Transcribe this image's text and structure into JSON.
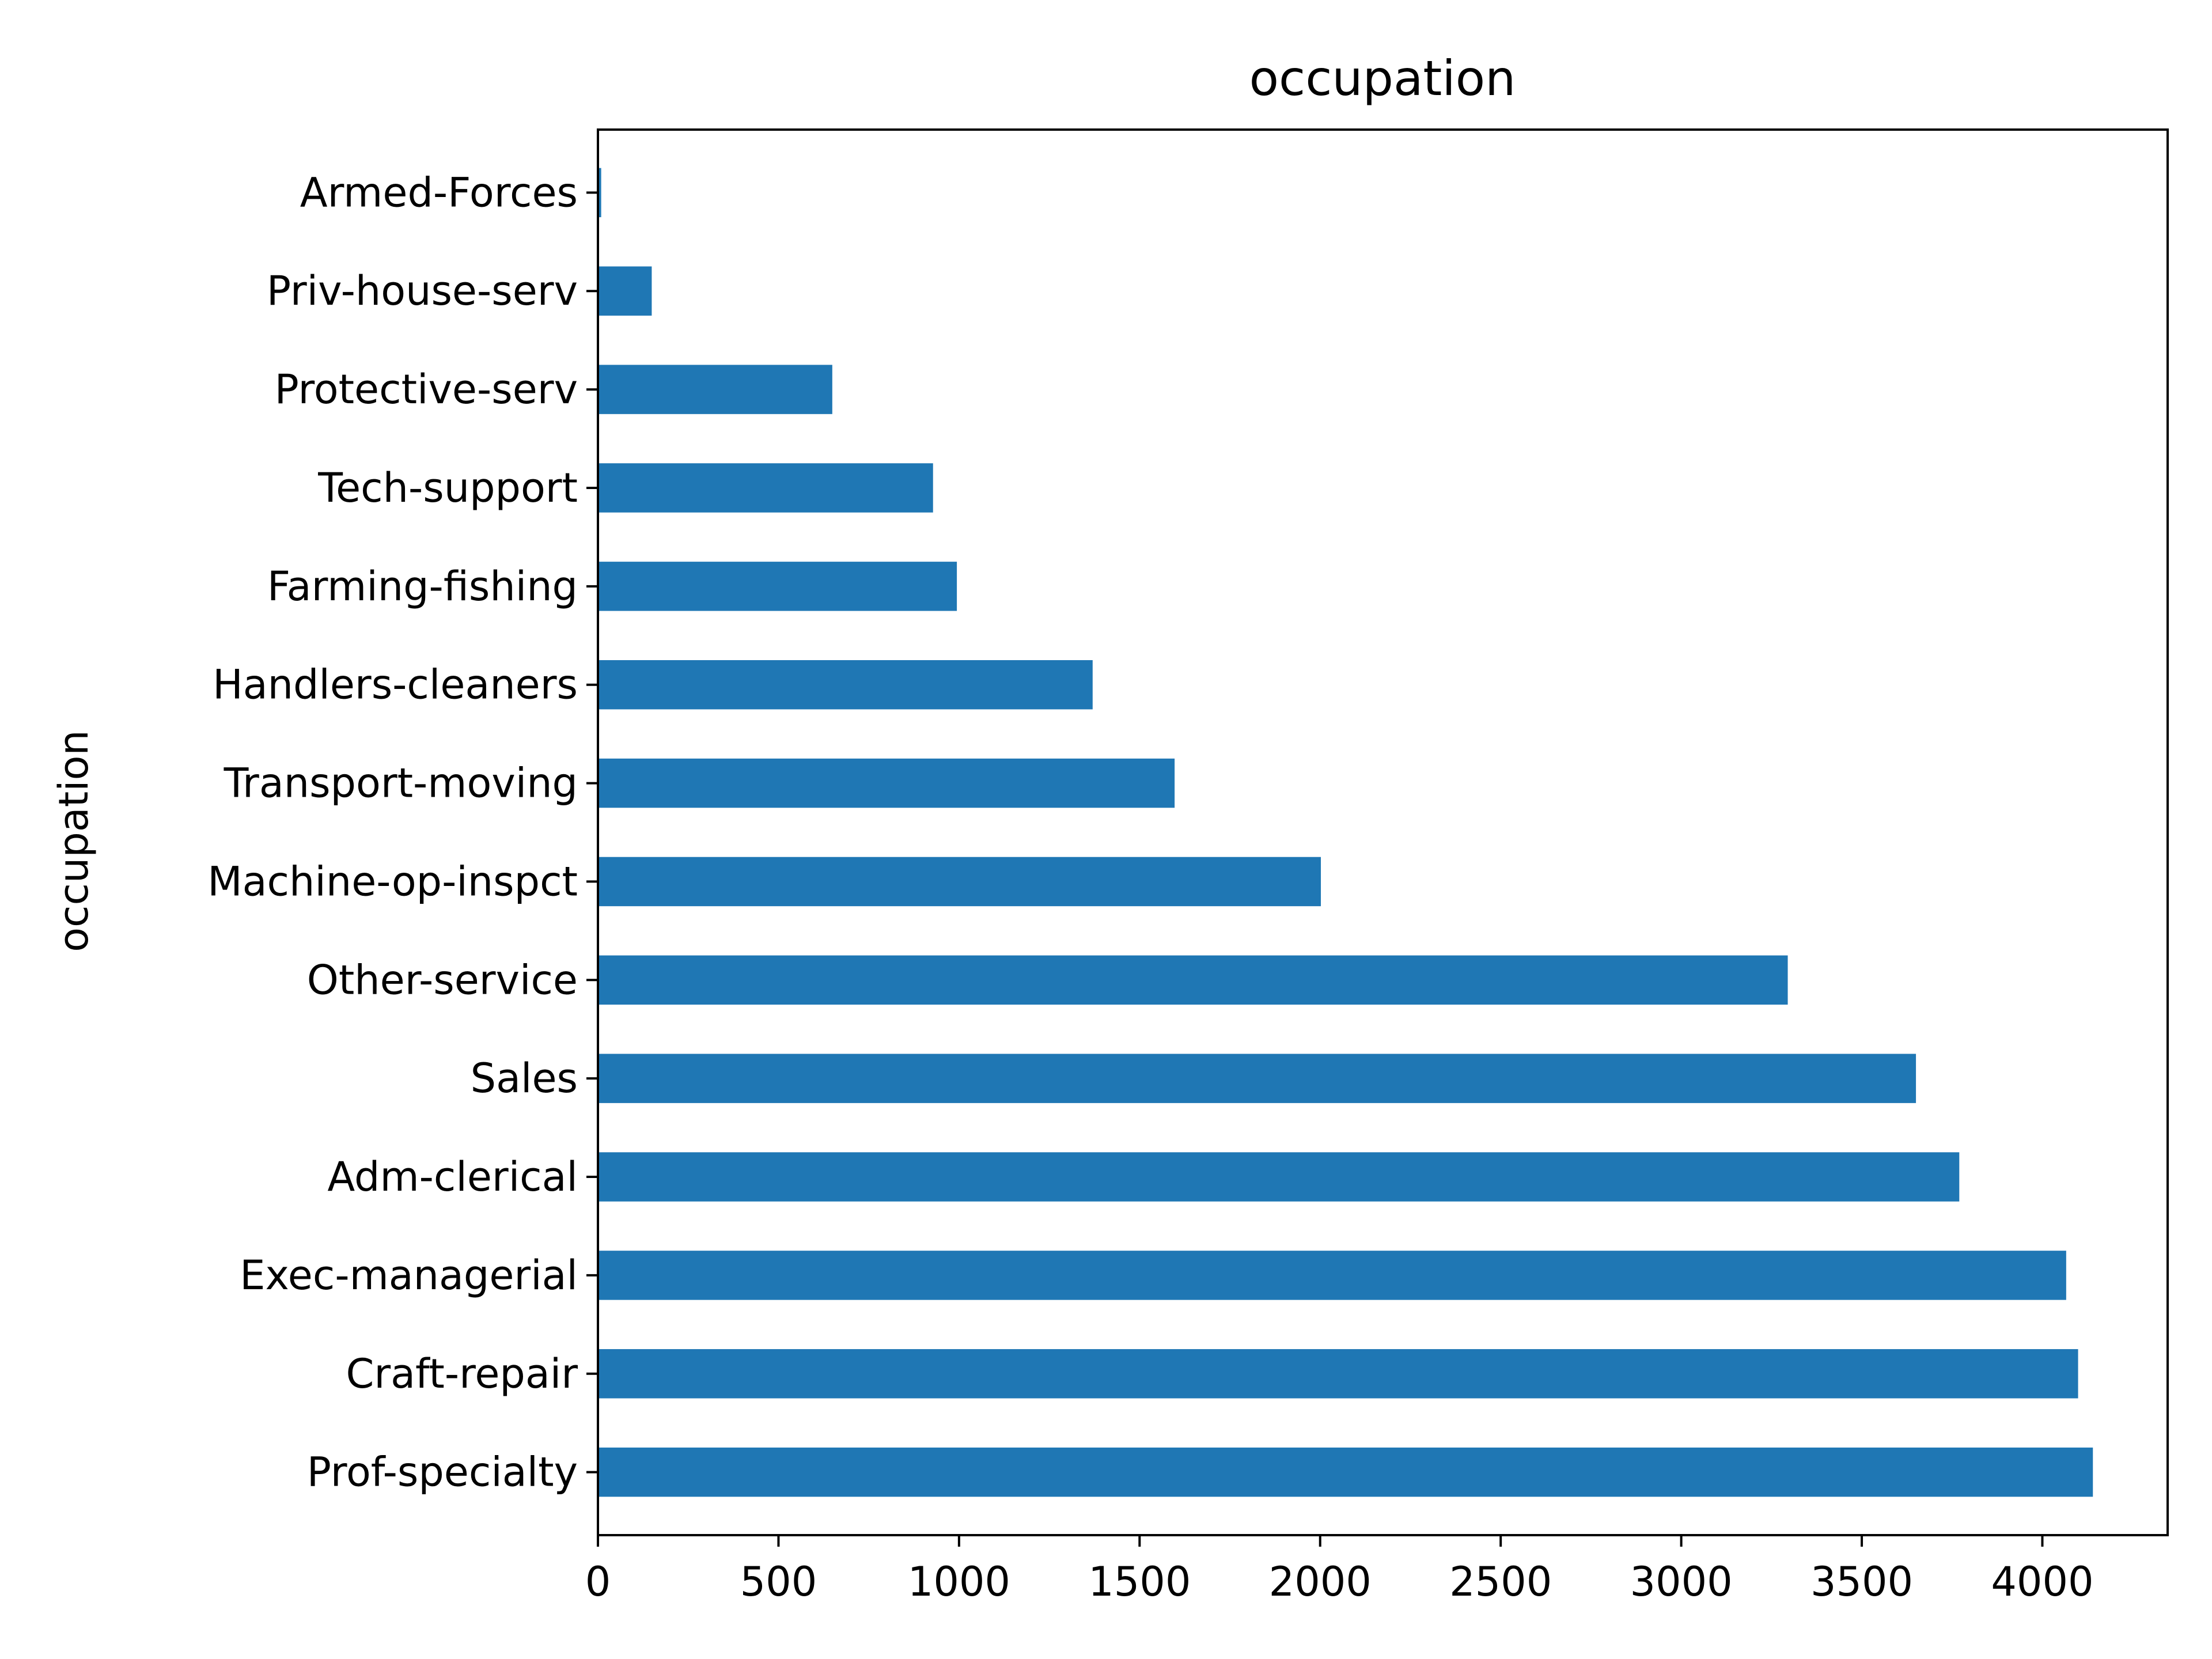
{
  "chart_data": {
    "type": "bar",
    "orientation": "horizontal",
    "title": "occupation",
    "xlabel": "",
    "ylabel": "occupation",
    "categories": [
      "Prof-specialty",
      "Craft-repair",
      "Exec-managerial",
      "Adm-clerical",
      "Sales",
      "Other-service",
      "Machine-op-inspct",
      "Transport-moving",
      "Handlers-cleaners",
      "Farming-fishing",
      "Tech-support",
      "Protective-serv",
      "Priv-house-serv",
      "Armed-Forces"
    ],
    "values": [
      4140,
      4099,
      4066,
      3770,
      3650,
      3295,
      2002,
      1597,
      1370,
      994,
      928,
      649,
      149,
      9
    ],
    "xlim": [
      0,
      4347
    ],
    "xticks": [
      0,
      500,
      1000,
      1500,
      2000,
      2500,
      3000,
      3500,
      4000
    ],
    "grid": false,
    "legend": false,
    "colors": {
      "bar": "#1f77b4",
      "axes": "#000000"
    }
  }
}
